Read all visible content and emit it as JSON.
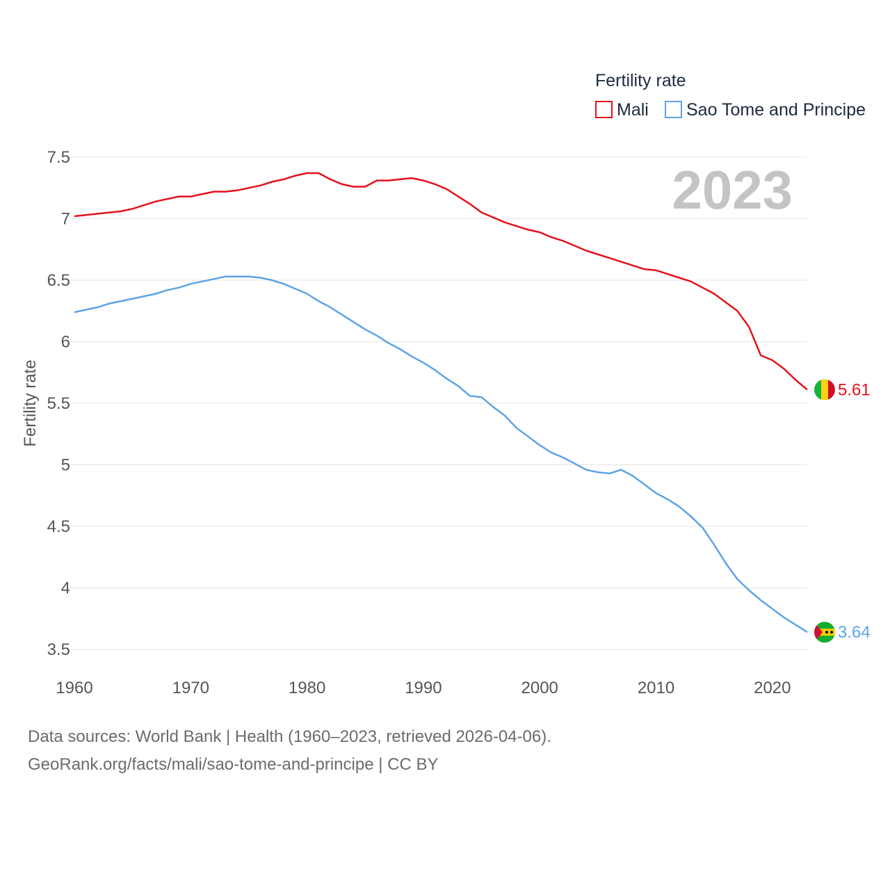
{
  "chart_data": {
    "type": "line",
    "legend_title": "Fertility rate",
    "ylabel": "Fertility rate",
    "year_label": "2023",
    "ylim": [
      3.5,
      7.5
    ],
    "xlim": [
      1960,
      2023
    ],
    "y_ticks": [
      {
        "value": 7.5,
        "label": "7.5"
      },
      {
        "value": 7,
        "label": "7"
      },
      {
        "value": 6.5,
        "label": "6.5"
      },
      {
        "value": 6,
        "label": "6"
      },
      {
        "value": 5.5,
        "label": "5.5"
      },
      {
        "value": 5,
        "label": "5"
      },
      {
        "value": 4.5,
        "label": "4.5"
      },
      {
        "value": 4,
        "label": "4"
      },
      {
        "value": 3.5,
        "label": "3.5"
      }
    ],
    "x_ticks": [
      {
        "value": 1960,
        "label": "1960"
      },
      {
        "value": 1970,
        "label": "1970"
      },
      {
        "value": 1980,
        "label": "1980"
      },
      {
        "value": 1990,
        "label": "1990"
      },
      {
        "value": 2000,
        "label": "2000"
      },
      {
        "value": 2010,
        "label": "2010"
      },
      {
        "value": 2020,
        "label": "2020"
      }
    ],
    "series": [
      {
        "name": "Mali",
        "color": "#e3111b",
        "end_label": "5.61",
        "flag": "mali-flag",
        "points": [
          [
            1960,
            7.02
          ],
          [
            1962,
            7.04
          ],
          [
            1964,
            7.06
          ],
          [
            1965,
            7.08
          ],
          [
            1967,
            7.14
          ],
          [
            1969,
            7.18
          ],
          [
            1970,
            7.18
          ],
          [
            1972,
            7.22
          ],
          [
            1973,
            7.22
          ],
          [
            1974,
            7.23
          ],
          [
            1976,
            7.27
          ],
          [
            1977,
            7.3
          ],
          [
            1978,
            7.32
          ],
          [
            1979,
            7.35
          ],
          [
            1980,
            7.37
          ],
          [
            1981,
            7.37
          ],
          [
            1982,
            7.32
          ],
          [
            1983,
            7.28
          ],
          [
            1984,
            7.26
          ],
          [
            1985,
            7.26
          ],
          [
            1986,
            7.31
          ],
          [
            1987,
            7.31
          ],
          [
            1989,
            7.33
          ],
          [
            1990,
            7.31
          ],
          [
            1991,
            7.28
          ],
          [
            1992,
            7.24
          ],
          [
            1993,
            7.18
          ],
          [
            1994,
            7.12
          ],
          [
            1995,
            7.05
          ],
          [
            1997,
            6.97
          ],
          [
            1999,
            6.91
          ],
          [
            2000,
            6.89
          ],
          [
            2001,
            6.85
          ],
          [
            2002,
            6.82
          ],
          [
            2003,
            6.78
          ],
          [
            2004,
            6.74
          ],
          [
            2006,
            6.68
          ],
          [
            2008,
            6.62
          ],
          [
            2009,
            6.59
          ],
          [
            2010,
            6.58
          ],
          [
            2011,
            6.55
          ],
          [
            2012,
            6.52
          ],
          [
            2013,
            6.49
          ],
          [
            2015,
            6.39
          ],
          [
            2017,
            6.25
          ],
          [
            2018,
            6.12
          ],
          [
            2019,
            5.89
          ],
          [
            2020,
            5.85
          ],
          [
            2021,
            5.78
          ],
          [
            2022,
            5.69
          ],
          [
            2023,
            5.61
          ]
        ]
      },
      {
        "name": "Sao Tome and Principe",
        "color": "#5da3e6",
        "end_label": "3.64",
        "flag": "sao-tome-and-principe-flag",
        "points": [
          [
            1960,
            6.24
          ],
          [
            1962,
            6.28
          ],
          [
            1963,
            6.31
          ],
          [
            1965,
            6.35
          ],
          [
            1967,
            6.39
          ],
          [
            1968,
            6.42
          ],
          [
            1969,
            6.44
          ],
          [
            1970,
            6.47
          ],
          [
            1972,
            6.51
          ],
          [
            1973,
            6.53
          ],
          [
            1975,
            6.53
          ],
          [
            1976,
            6.52
          ],
          [
            1977,
            6.5
          ],
          [
            1978,
            6.47
          ],
          [
            1979,
            6.43
          ],
          [
            1980,
            6.39
          ],
          [
            1981,
            6.33
          ],
          [
            1982,
            6.28
          ],
          [
            1983,
            6.22
          ],
          [
            1984,
            6.16
          ],
          [
            1985,
            6.1
          ],
          [
            1986,
            6.05
          ],
          [
            1987,
            5.99
          ],
          [
            1988,
            5.94
          ],
          [
            1989,
            5.88
          ],
          [
            1990,
            5.83
          ],
          [
            1991,
            5.77
          ],
          [
            1992,
            5.7
          ],
          [
            1993,
            5.64
          ],
          [
            1994,
            5.56
          ],
          [
            1995,
            5.55
          ],
          [
            1996,
            5.47
          ],
          [
            1997,
            5.4
          ],
          [
            1998,
            5.3
          ],
          [
            1999,
            5.23
          ],
          [
            2000,
            5.16
          ],
          [
            2001,
            5.1
          ],
          [
            2002,
            5.06
          ],
          [
            2003,
            5.01
          ],
          [
            2004,
            4.96
          ],
          [
            2005,
            4.94
          ],
          [
            2006,
            4.93
          ],
          [
            2007,
            4.96
          ],
          [
            2008,
            4.91
          ],
          [
            2009,
            4.84
          ],
          [
            2010,
            4.77
          ],
          [
            2011,
            4.72
          ],
          [
            2012,
            4.66
          ],
          [
            2013,
            4.58
          ],
          [
            2014,
            4.49
          ],
          [
            2015,
            4.35
          ],
          [
            2016,
            4.2
          ],
          [
            2017,
            4.07
          ],
          [
            2018,
            3.98
          ],
          [
            2019,
            3.9
          ],
          [
            2020,
            3.83
          ],
          [
            2021,
            3.76
          ],
          [
            2022,
            3.7
          ],
          [
            2023,
            3.64
          ]
        ]
      }
    ]
  },
  "footer": {
    "line1": "Data sources: World Bank | Health (1960–2023, retrieved 2026-04-06).",
    "line2": "GeoRank.org/facts/mali/sao-tome-and-principe | CC BY"
  }
}
